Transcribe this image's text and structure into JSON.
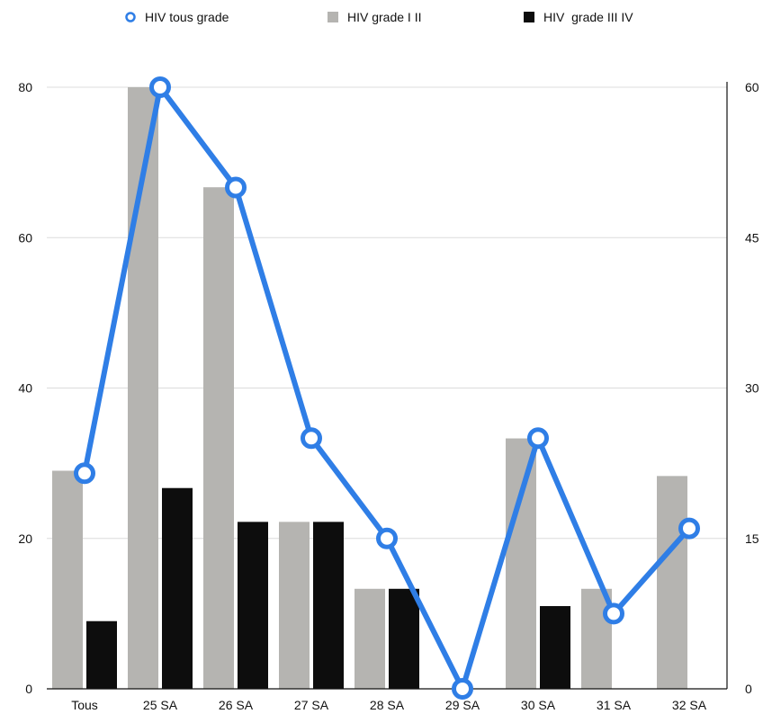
{
  "chart_data": {
    "type": "bar",
    "categories": [
      "Tous",
      "25 SA",
      "26 SA",
      "27 SA",
      "28 SA",
      "29 SA",
      "30 SA",
      "31 SA",
      "32 SA"
    ],
    "series": [
      {
        "name": "HIV tous grade",
        "type": "line",
        "axis": "right",
        "color": "#2f7ee6",
        "values": [
          21.5,
          60,
          50,
          25,
          15,
          0,
          25,
          7.5,
          16
        ]
      },
      {
        "name": "HIV grade I II",
        "type": "bar",
        "axis": "left",
        "color": "#b5b4b1",
        "values": [
          29,
          80,
          66.7,
          22.2,
          13.3,
          null,
          33.3,
          13.3,
          28.3
        ]
      },
      {
        "name": "HIV  grade III IV",
        "type": "bar",
        "axis": "left",
        "color": "#0d0d0d",
        "values": [
          9,
          26.7,
          22.2,
          22.2,
          13.3,
          null,
          11,
          null,
          null
        ]
      }
    ],
    "y_left": {
      "ylim": [
        0,
        80
      ],
      "ticks": [
        "0",
        "20",
        "40",
        "60",
        "80"
      ]
    },
    "y_right": {
      "ylim": [
        0,
        60
      ],
      "ticks": [
        "0",
        "15",
        "30",
        "45",
        "60"
      ]
    },
    "grid": true,
    "legend_position": "top"
  }
}
